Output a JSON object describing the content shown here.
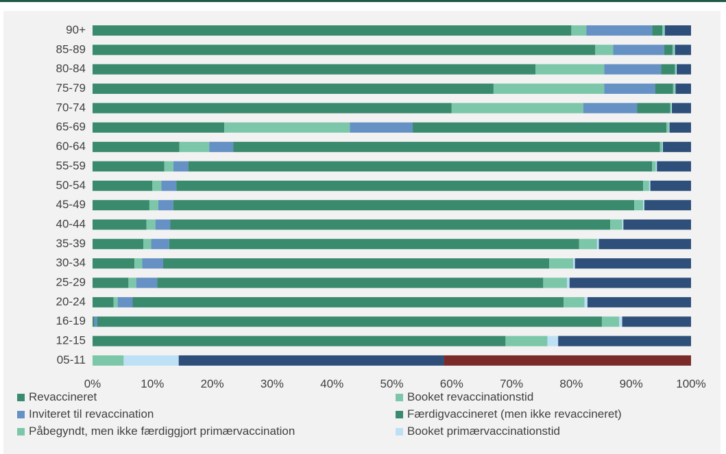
{
  "chart_data": {
    "type": "bar",
    "orientation": "horizontal",
    "stacked": "percent",
    "categories": [
      "90+",
      "85-89",
      "80-84",
      "75-79",
      "70-74",
      "65-69",
      "60-64",
      "55-59",
      "50-54",
      "45-49",
      "40-44",
      "35-39",
      "30-34",
      "25-29",
      "20-24",
      "16-19",
      "12-15",
      "05-11"
    ],
    "x_ticks": [
      "0%",
      "10%",
      "20%",
      "30%",
      "40%",
      "50%",
      "60%",
      "70%",
      "80%",
      "90%",
      "100%"
    ],
    "xlim": [
      0,
      100
    ],
    "grid": false,
    "legend_position": "bottom",
    "series": [
      {
        "name": "Revaccineret",
        "color": "#3a8a6e",
        "values": [
          80,
          84,
          74,
          67,
          60,
          22,
          14.5,
          12,
          10,
          9.5,
          9,
          8.5,
          7,
          6,
          3.5,
          0.3,
          0,
          0
        ]
      },
      {
        "name": "Booket revaccinationstid",
        "color": "#7cc7a9",
        "values": [
          2.5,
          3,
          11.5,
          18.5,
          22,
          21,
          5,
          1.5,
          1.5,
          1.5,
          1.5,
          1.3,
          1.3,
          1.3,
          0.7,
          0,
          0,
          0
        ]
      },
      {
        "name": "Inviteret til revaccination",
        "color": "#6591c4",
        "values": [
          11,
          8.5,
          9.5,
          8.5,
          9,
          10.5,
          4,
          2.5,
          2.5,
          2.5,
          2.5,
          3,
          3.5,
          3.5,
          2.5,
          0.5,
          0,
          0
        ]
      },
      {
        "name": "Færdigvaccineret (men ikke revaccineret)",
        "color": "#3a8a6e",
        "values": [
          1.7,
          1.4,
          2.3,
          3,
          5.5,
          42.4,
          71.3,
          77.5,
          78,
          77,
          73.5,
          68.5,
          64.5,
          64.5,
          72,
          84.3,
          69,
          0
        ]
      },
      {
        "name": "Påbegyndt, men ikke færdiggjort primærvaccination",
        "color": "#7cc7a9",
        "values": [
          0.3,
          0.3,
          0.2,
          0.3,
          0.2,
          0.4,
          0.4,
          0.6,
          1,
          1.5,
          2,
          3,
          4,
          4,
          3.5,
          2.9,
          7,
          5.2
        ]
      },
      {
        "name": "Booket primærvaccinationstid",
        "color": "#bde0f5",
        "values": [
          0.1,
          0.1,
          0.1,
          0.1,
          0.1,
          0.1,
          0.1,
          0.2,
          0.2,
          0.2,
          0.2,
          0.3,
          0.3,
          0.4,
          0.5,
          0.5,
          1.8,
          9.2
        ]
      },
      {
        "name": "",
        "color": "#2e4f79",
        "values": [
          4.4,
          2.7,
          2.4,
          2.6,
          3.2,
          3.6,
          4.7,
          5.7,
          6.8,
          7.8,
          11.3,
          15.4,
          19.4,
          20.3,
          17.3,
          11.5,
          22.2,
          44.3
        ]
      },
      {
        "name": "",
        "color": "#7b2a2a",
        "values": [
          0,
          0,
          0,
          0,
          0,
          0,
          0,
          0,
          0,
          0,
          0,
          0,
          0,
          0,
          0,
          0,
          0,
          41.3
        ]
      }
    ]
  }
}
